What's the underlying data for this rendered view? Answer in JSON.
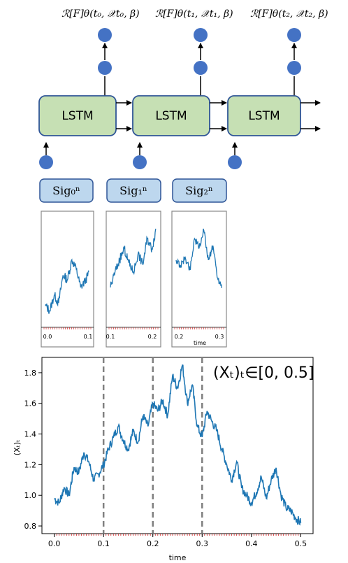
{
  "diagram": {
    "output_labels": [
      "ℛ[F]θ(t₀, 𝒳t₀, β)",
      "ℛ[F]θ(t₁, 𝒳t₁, β)",
      "ℛ[F]θ(t₂, 𝒳t₂, β)"
    ],
    "lstm_label": "LSTM",
    "sig_labels": [
      "Sig₀ⁿ",
      "Sig₁ⁿ",
      "Sig₂ⁿ"
    ],
    "colors": {
      "lstm_fill": "#c6e0b4",
      "lstm_stroke": "#2f5597",
      "node": "#4472c4",
      "sig_fill": "#bdd7ee",
      "path": "#1f77b4",
      "vline": "#808080"
    }
  },
  "small_panels": [
    {
      "xticks": [
        "0.0",
        "0.1"
      ],
      "xlabel": ""
    },
    {
      "xticks": [
        "0.1",
        "0.2"
      ],
      "xlabel": ""
    },
    {
      "xticks": [
        "0.2",
        "0.3"
      ],
      "xlabel": "time"
    }
  ],
  "chart_data": {
    "type": "line",
    "title": "",
    "annotation": "(Xₜ)ₜ∈[0, 0.5]",
    "xlabel": "time",
    "ylabel": "(Xₜ)ₜ",
    "xlim": [
      -0.025,
      0.525
    ],
    "ylim": [
      0.75,
      1.9
    ],
    "xticks": [
      "0.0",
      "0.1",
      "0.2",
      "0.3",
      "0.4",
      "0.5"
    ],
    "yticks": [
      "0.8",
      "1.0",
      "1.2",
      "1.4",
      "1.6",
      "1.8"
    ],
    "vlines": [
      0.1,
      0.2,
      0.3
    ],
    "series": [
      {
        "x": [
          0.0,
          0.01,
          0.02,
          0.03,
          0.04,
          0.05,
          0.06,
          0.07,
          0.08,
          0.09,
          0.1,
          0.11,
          0.12,
          0.13,
          0.14,
          0.15,
          0.16,
          0.17,
          0.18,
          0.19,
          0.2,
          0.21,
          0.22,
          0.23,
          0.24,
          0.25,
          0.26,
          0.27,
          0.28,
          0.29,
          0.3,
          0.31,
          0.32,
          0.33,
          0.34,
          0.35,
          0.36,
          0.37,
          0.38,
          0.39,
          0.4,
          0.41,
          0.42,
          0.43,
          0.44,
          0.45,
          0.46,
          0.47,
          0.48,
          0.49,
          0.5
        ],
        "values": [
          0.98,
          0.95,
          1.05,
          1.0,
          1.18,
          1.15,
          1.28,
          1.22,
          1.1,
          1.14,
          1.2,
          1.3,
          1.38,
          1.45,
          1.36,
          1.3,
          1.42,
          1.35,
          1.52,
          1.45,
          1.6,
          1.55,
          1.62,
          1.52,
          1.78,
          1.7,
          1.85,
          1.6,
          1.72,
          1.45,
          1.38,
          1.55,
          1.48,
          1.42,
          1.3,
          1.2,
          1.1,
          1.22,
          1.05,
          1.0,
          0.95,
          1.02,
          1.12,
          0.98,
          1.1,
          1.18,
          1.0,
          0.92,
          0.9,
          0.85,
          0.82
        ]
      }
    ]
  }
}
